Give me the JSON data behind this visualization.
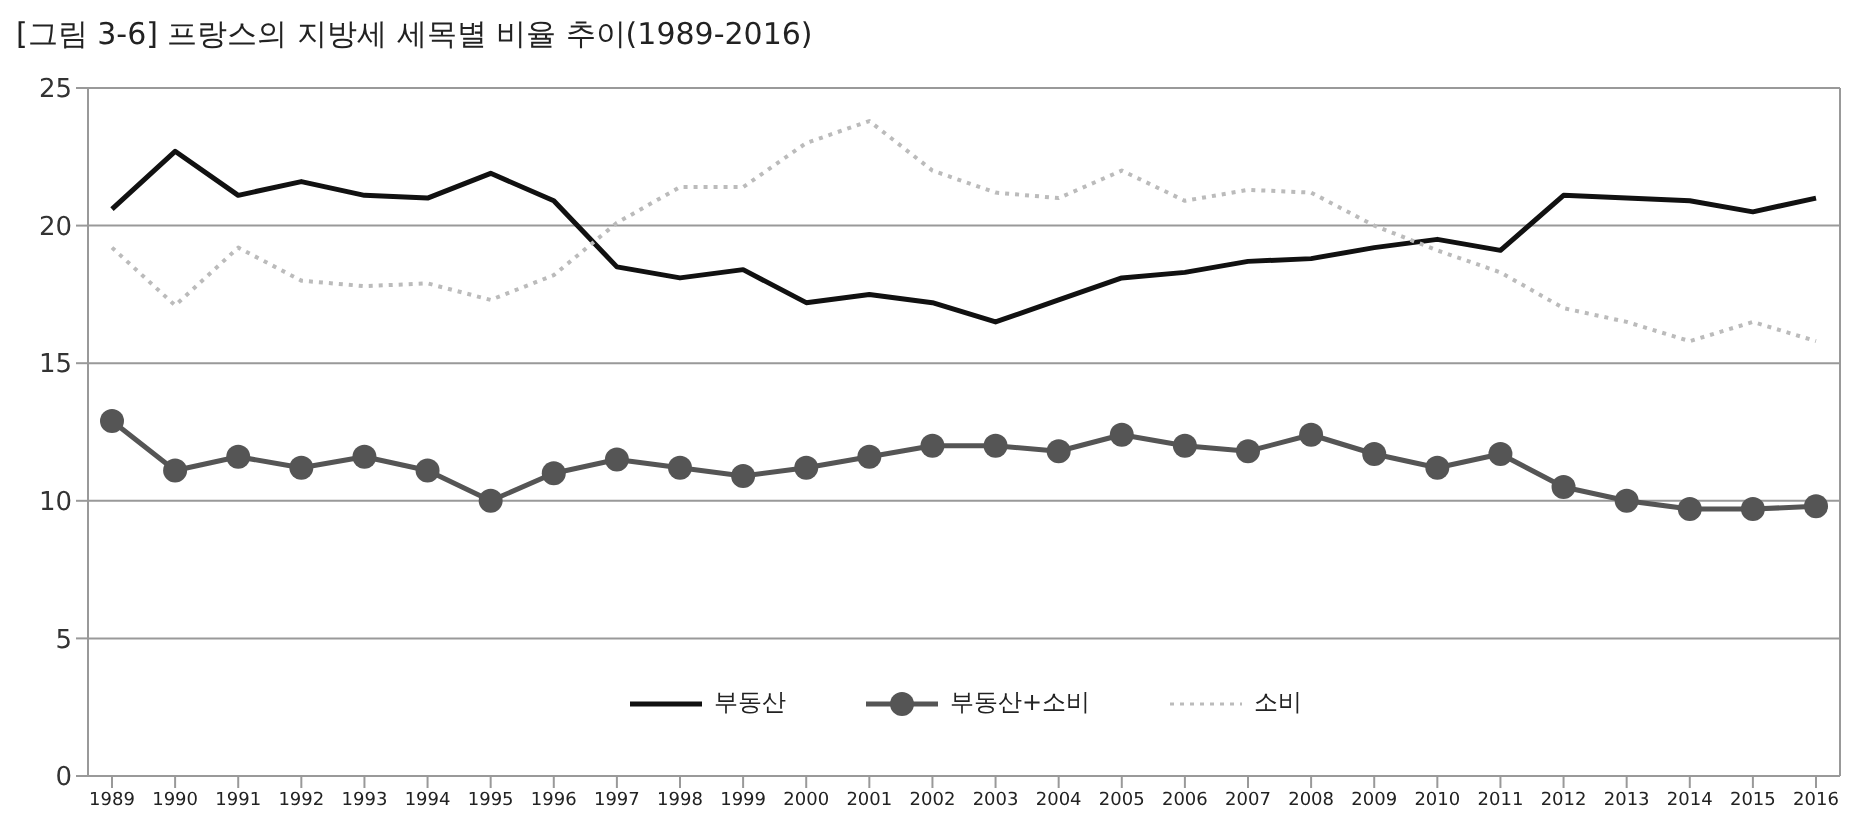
{
  "chart_data": {
    "type": "line",
    "title": "[그림 3-6] 프랑스의 지방세 세목별 비율 추이(1989-2016)",
    "categories": [
      "1989",
      "1990",
      "1991",
      "1992",
      "1993",
      "1994",
      "1995",
      "1996",
      "1997",
      "1998",
      "1999",
      "2000",
      "2001",
      "2002",
      "2003",
      "2004",
      "2005",
      "2006",
      "2007",
      "2008",
      "2009",
      "2010",
      "2011",
      "2012",
      "2013",
      "2014",
      "2015",
      "2016"
    ],
    "series": [
      {
        "name": "부동산",
        "color": "#111111",
        "marker": "none",
        "line_style": "solid",
        "values": [
          20.6,
          22.7,
          21.1,
          21.6,
          21.1,
          21.0,
          21.9,
          20.9,
          18.5,
          18.1,
          18.4,
          17.2,
          17.5,
          17.2,
          16.5,
          17.3,
          18.1,
          18.3,
          18.7,
          18.8,
          19.2,
          19.5,
          19.1,
          21.1,
          21.0,
          20.9,
          20.5,
          21.0
        ]
      },
      {
        "name": "부동산+소비",
        "color": "#555555",
        "marker": "circle",
        "line_style": "solid",
        "values": [
          12.9,
          11.1,
          11.6,
          11.2,
          11.6,
          11.1,
          10.0,
          11.0,
          11.5,
          11.2,
          10.9,
          11.2,
          11.6,
          12.0,
          12.0,
          11.8,
          12.4,
          12.0,
          11.8,
          12.4,
          11.7,
          11.2,
          11.7,
          10.5,
          10.0,
          9.7,
          9.7,
          9.8
        ]
      },
      {
        "name": "소비",
        "color": "#bbbbbb",
        "marker": "none",
        "line_style": "dotted",
        "values": [
          19.2,
          17.1,
          19.2,
          18.0,
          17.8,
          17.9,
          17.3,
          18.2,
          20.1,
          21.4,
          21.4,
          23.0,
          23.8,
          22.0,
          21.2,
          21.0,
          22.0,
          20.9,
          21.3,
          21.2,
          20.0,
          19.1,
          18.3,
          17.0,
          16.5,
          15.8,
          16.5,
          15.8
        ]
      }
    ],
    "ylim": [
      0,
      25
    ],
    "yticks": [
      0,
      5,
      10,
      15,
      20,
      25
    ],
    "grid": "y",
    "legend": "bottom"
  }
}
